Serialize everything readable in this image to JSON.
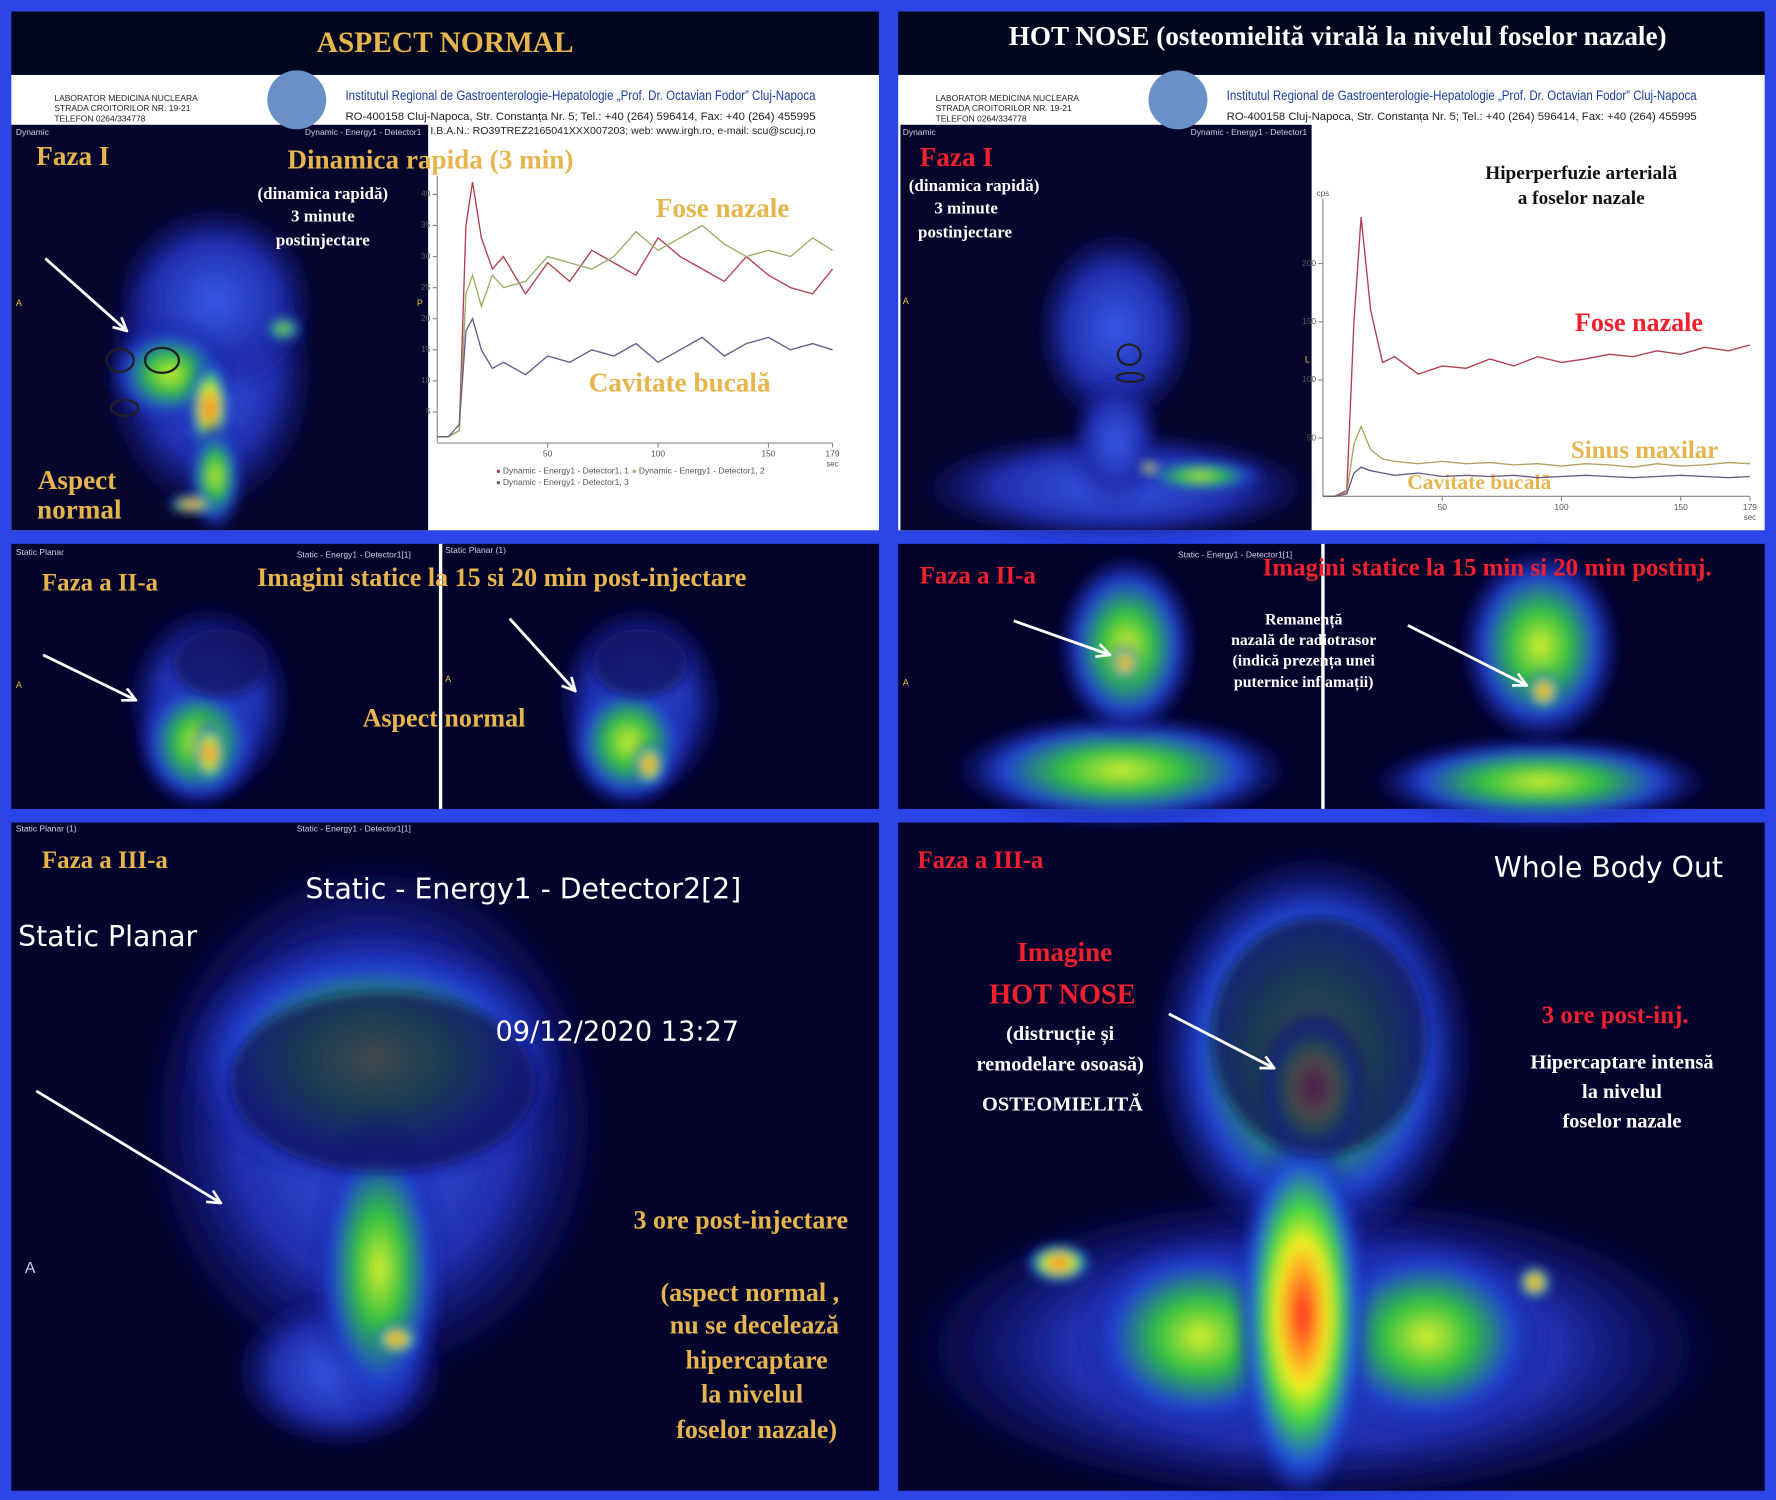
{
  "letterhead": {
    "lab": "LABORATOR MEDICINA NUCLEARA",
    "street": "STRADA CROITORILOR NR. 19-21",
    "phone": "TELEFON 0264/334778",
    "institute": "Institutul Regional de Gastroenterologie-Hepatologie „Prof. Dr. Octavian Fodor” Cluj-Napoca",
    "address": "RO-400158 Cluj-Napoca, Str. Constanța Nr. 5; Tel.: +40 (264) 596414, Fax: +40 (264) 455995",
    "iban": "I.B.A.N.: RO39TREZ2165041XXX007203; web: www.irgh.ro, e-mail: scu@scucj.ro"
  },
  "left": {
    "header": {
      "title": "ASPECT  NORMAL"
    },
    "phase1": {
      "dicom_left": "Dynamic",
      "dicom_right": "Dynamic - Energy1 - Detector1",
      "faza": "Faza I",
      "title": "Dinamica rapida (3 min)",
      "note": [
        "(dinamica rapidă)",
        "3 minute",
        "postinjectare"
      ],
      "aspect": [
        "Aspect",
        "normal"
      ],
      "marker_a": "A",
      "marker_p": "P",
      "label_fose": "Fose nazale",
      "label_cavitate": "Cavitate bucală",
      "chart": {
        "type": "line",
        "x": [
          0,
          5,
          10,
          13,
          16,
          20,
          25,
          30,
          40,
          50,
          60,
          70,
          80,
          90,
          100,
          110,
          120,
          130,
          140,
          150,
          160,
          170,
          179
        ],
        "xlim": [
          0,
          179
        ],
        "ylim": [
          0,
          43
        ],
        "xticks": [
          50,
          100,
          150,
          179
        ],
        "yticks": [
          5,
          10,
          15,
          20,
          25,
          30,
          35,
          40
        ],
        "x_label": "sec",
        "series": [
          {
            "name": "Dynamic - Energy1 - Detector1, 1",
            "color": "#b04050",
            "values": [
              1,
              1,
              2,
              35,
              42,
              33,
              28,
              30,
              24,
              29,
              26,
              31,
              29,
              27,
              33,
              30,
              28,
              26,
              30,
              27,
              25,
              24,
              28
            ]
          },
          {
            "name": "Dynamic - Energy1 - Detector1, 2",
            "color": "#9aac6a",
            "values": [
              1,
              1,
              2,
              24,
              27,
              22,
              27,
              25,
              26,
              30,
              29,
              28,
              30,
              34,
              31,
              33,
              35,
              32,
              30,
              31,
              30,
              33,
              31
            ]
          },
          {
            "name": "Dynamic - Energy1 - Detector1, 3",
            "color": "#6a5a8a",
            "values": [
              1,
              1,
              3,
              18,
              20,
              15,
              12,
              13,
              11,
              14,
              13,
              15,
              14,
              16,
              13,
              15,
              17,
              14,
              16,
              17,
              15,
              16,
              15
            ]
          }
        ]
      }
    },
    "phase2": {
      "dicom_left": "Static Planar",
      "dicom_mid": "Static - Energy1 - Detector1[1]",
      "dicom_right": "Static Planar (1)",
      "faza": "Faza a II-a",
      "title": "Imagini statice la 15 si 20 min post-injectare",
      "aspect": "Aspect normal",
      "marker_a": "A"
    },
    "phase3": {
      "dicom_left": "Static Planar (1)",
      "dicom_mid": "Static - Energy1 - Detector1[1]",
      "faza": "Faza a III-a",
      "detector": "Static - Energy1 - Detector2[2]",
      "planar": "Static Planar",
      "date": "09/12/2020 13:27",
      "title": "3 ore post-injectare",
      "note": [
        "(aspect normal ,",
        "nu se decelează",
        "hipercaptare",
        "la nivelul",
        "foselor nazale)"
      ],
      "marker_a": "A"
    }
  },
  "right": {
    "header": {
      "title": "HOT NOSE  (osteomielită virală la nivelul foselor nazale)"
    },
    "phase1": {
      "dicom_left": "Dynamic",
      "dicom_right": "Dynamic - Energy1 - Detector1",
      "faza": "Faza I",
      "note": [
        "(dinamica rapidă)",
        "3 minute",
        "postinjectare"
      ],
      "marker_a": "A",
      "marker_l": "L",
      "title": [
        "Hiperperfuzie arterială",
        "a foselor nazale"
      ],
      "chart": {
        "type": "line",
        "x": [
          0,
          5,
          10,
          13,
          16,
          20,
          25,
          30,
          40,
          50,
          60,
          70,
          80,
          90,
          100,
          110,
          120,
          130,
          140,
          150,
          160,
          170,
          179
        ],
        "xlim": [
          0,
          179
        ],
        "ylim": [
          0,
          256
        ],
        "xticks": [
          50,
          100,
          150,
          179
        ],
        "yticks": [
          50,
          100,
          150,
          200
        ],
        "x_label": "sec",
        "y_label": "cps",
        "series": [
          {
            "name": "Fose nazale",
            "color": "#b04050",
            "values": [
              0,
              0,
              5,
              150,
              240,
              160,
              115,
              120,
              105,
              112,
              110,
              118,
              112,
              120,
              115,
              118,
              122,
              120,
              125,
              122,
              128,
              125,
              130
            ]
          },
          {
            "name": "Sinus maxilar",
            "color": "#b0a060",
            "values": [
              0,
              0,
              3,
              45,
              60,
              40,
              32,
              30,
              28,
              30,
              28,
              29,
              27,
              28,
              26,
              28,
              27,
              25,
              28,
              26,
              27,
              29,
              28
            ]
          },
          {
            "name": "Cavitate bucală",
            "color": "#6a5a80",
            "values": [
              0,
              0,
              2,
              20,
              25,
              22,
              20,
              18,
              20,
              17,
              18,
              17,
              18,
              16,
              17,
              18,
              17,
              16,
              17,
              18,
              17,
              16,
              17
            ]
          }
        ]
      }
    },
    "phase2": {
      "dicom_mid": "Static - Energy1 - Detector1[1]",
      "faza": "Faza a II-a",
      "title": "Imagini statice la 15 min si 20 min postinj.",
      "note": [
        "Remanență",
        "nazală de radiotrasor",
        "(indică prezența unei",
        "puternice inflamații)"
      ],
      "marker_a": "A"
    },
    "phase3": {
      "faza": "Faza a III-a",
      "title": "Whole Body Out",
      "image": [
        "Imagine",
        "HOT  NOSE"
      ],
      "note": [
        "(distrucție și",
        "remodelare osoasă)",
        "OSTEOMIELITĂ"
      ],
      "time": "3 ore post-inj.",
      "finding": [
        "Hipercaptare  intensă",
        "la nivelul",
        "foselor  nazale"
      ]
    }
  }
}
